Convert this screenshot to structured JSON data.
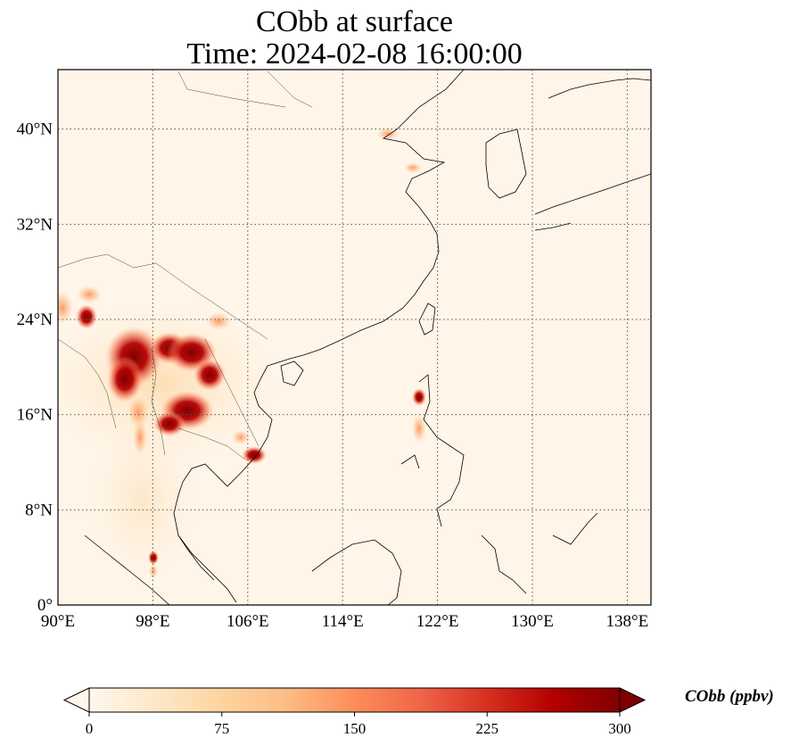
{
  "map": {
    "title_line1": "CObb at surface",
    "title_line2": "Time: 2024-02-08 16:00:00",
    "lon_ticks": [
      "90°E",
      "98°E",
      "106°E",
      "114°E",
      "122°E",
      "130°E",
      "138°E"
    ],
    "lat_ticks": [
      "40°N",
      "32°N",
      "24°N",
      "16°N",
      "8°N",
      "0°"
    ],
    "extent": {
      "lon": [
        90,
        140
      ],
      "lat": [
        0,
        45
      ]
    },
    "gridlines": true,
    "colormap": "OrRd",
    "background_color": "#fff5e8",
    "high_color": "#7f0000"
  },
  "colorbar": {
    "label": "CObb (ppbv)",
    "ticks": [
      "0",
      "75",
      "150",
      "225",
      "300"
    ],
    "range": [
      0,
      300
    ],
    "extend": "both",
    "colors": [
      "#fff7ec",
      "#fee8c8",
      "#fdd49e",
      "#fdbb84",
      "#fc8d59",
      "#ef6548",
      "#d7301f",
      "#b30000",
      "#7f0000"
    ]
  }
}
